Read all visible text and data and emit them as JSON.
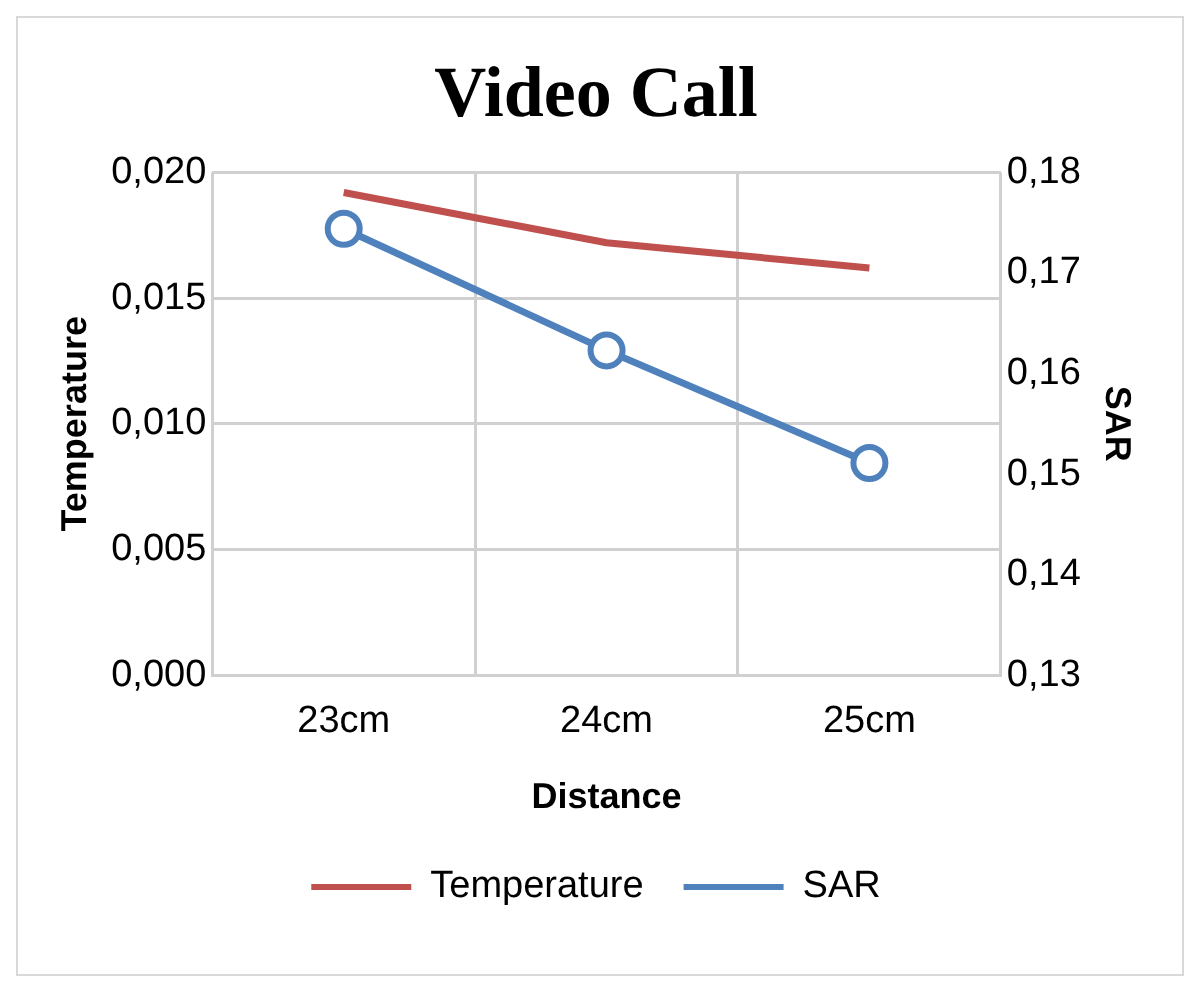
{
  "chart_data": {
    "type": "line",
    "title": "Video Call",
    "xlabel": "Distance",
    "ylabel": "Temperature",
    "y2label": "SAR",
    "categories": [
      "23cm",
      "24cm",
      "25cm"
    ],
    "series": [
      {
        "name": "Temperature",
        "color": "#c0504d",
        "values": [
          0.0192,
          0.0172,
          0.0162
        ],
        "marker": "none"
      },
      {
        "name": "SAR",
        "color": "#4f81bd",
        "values": [
          0.1744,
          0.1623,
          0.1511
        ],
        "axis": "y2",
        "marker": "circle"
      }
    ],
    "ylim": [
      0,
      0.02
    ],
    "yticks": [
      {
        "value": 0,
        "label": "0,000"
      },
      {
        "value": 0.005,
        "label": "0,005"
      },
      {
        "value": 0.01,
        "label": "0,010"
      },
      {
        "value": 0.015,
        "label": "0,015"
      },
      {
        "value": 0.02,
        "label": "0,020"
      }
    ],
    "y2lim": [
      0.13,
      0.18
    ],
    "y2ticks": [
      {
        "value": 0.13,
        "label": "0,13"
      },
      {
        "value": 0.14,
        "label": "0,14"
      },
      {
        "value": 0.15,
        "label": "0,15"
      },
      {
        "value": 0.16,
        "label": "0,16"
      },
      {
        "value": 0.17,
        "label": "0,17"
      },
      {
        "value": 0.18,
        "label": "0,18"
      }
    ],
    "grid": true,
    "legend": "bottom"
  }
}
